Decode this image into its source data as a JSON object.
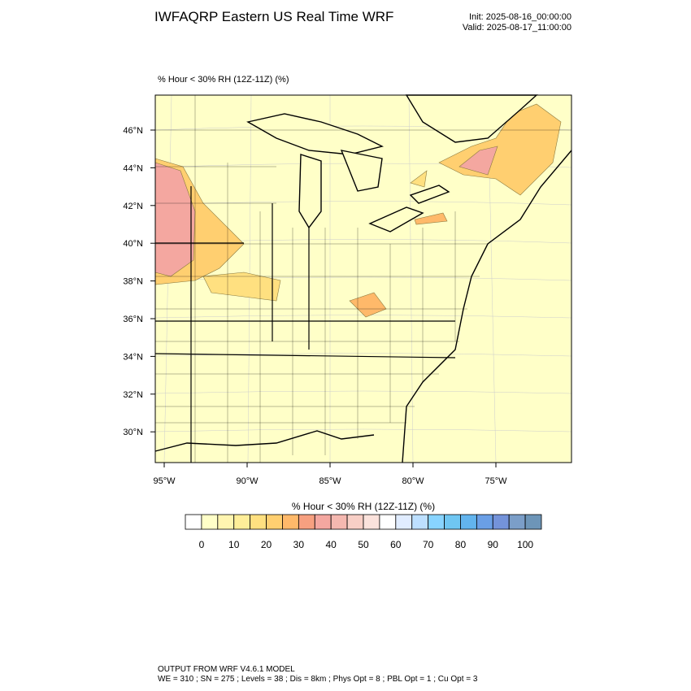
{
  "header": {
    "title": "IWFAQRP Eastern US Real Time WRF",
    "init": "Init: 2025-08-16_00:00:00",
    "valid": "Valid: 2025-08-17_11:00:00"
  },
  "map": {
    "subtitle": "% Hour < 30% RH (12Z-11Z)   (%)",
    "lat_labels": [
      "46°N",
      "44°N",
      "42°N",
      "40°N",
      "38°N",
      "36°N",
      "34°N",
      "32°N",
      "30°N"
    ],
    "lon_labels": [
      "95°W",
      "90°W",
      "85°W",
      "80°W",
      "75°W"
    ]
  },
  "colorbar": {
    "title": "% Hour < 30% RH (12Z-11Z)  (%)",
    "colors": [
      "#ffffff",
      "#ffffc8",
      "#fff5b0",
      "#ffee99",
      "#ffe080",
      "#ffcf70",
      "#ffb96a",
      "#f7a080",
      "#f4a7a0",
      "#f5b8b0",
      "#f8cfc6",
      "#fbe2dc",
      "#ffffff",
      "#e0ecff",
      "#bde0ff",
      "#88d4ff",
      "#6fc6f2",
      "#62b4ee",
      "#6a9fe6",
      "#7493da",
      "#7b9ec8",
      "#6d95b8"
    ],
    "labels": [
      0,
      10,
      20,
      30,
      40,
      50,
      60,
      70,
      80,
      90,
      100
    ]
  },
  "footer": {
    "line1": "OUTPUT FROM WRF V4.6.1 MODEL",
    "line2": "WE = 310 ; SN = 275 ; Levels = 38 ; Dis = 8km ; Phys Opt = 8 ; PBL Opt = 1 ; Cu Opt = 3"
  }
}
